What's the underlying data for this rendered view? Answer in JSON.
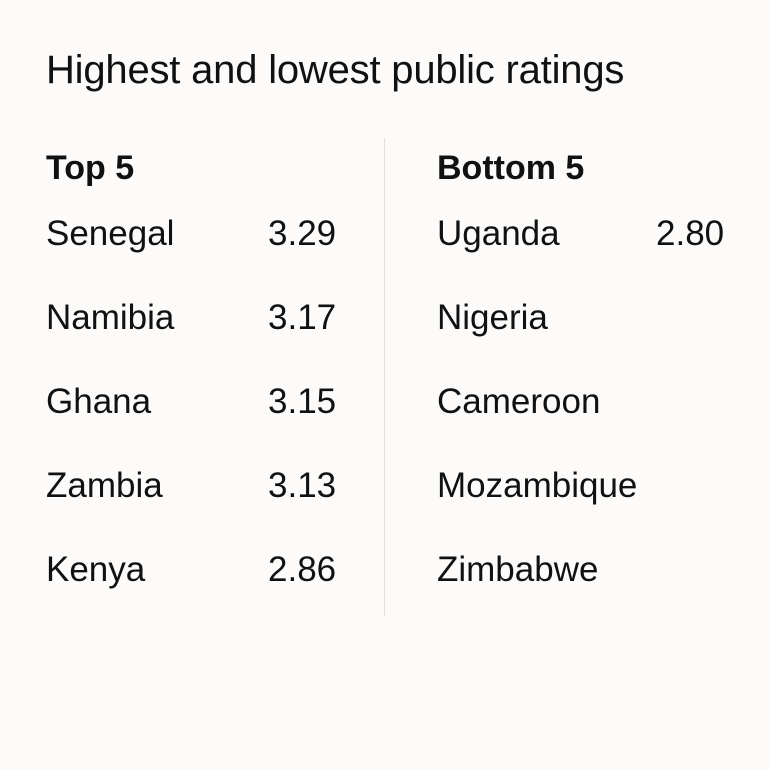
{
  "title": "Highest and lowest public ratings",
  "top": {
    "header": "Top 5",
    "rows": [
      {
        "country": "Senegal",
        "rating": "3.29"
      },
      {
        "country": "Namibia",
        "rating": "3.17"
      },
      {
        "country": "Ghana",
        "rating": "3.15"
      },
      {
        "country": "Zambia",
        "rating": "3.13"
      },
      {
        "country": "Kenya",
        "rating": "2.86"
      }
    ]
  },
  "bottom": {
    "header": "Bottom 5",
    "rows": [
      {
        "country": "Uganda",
        "rating": "2.80"
      },
      {
        "country": "Nigeria"
      },
      {
        "country": "Cameroon"
      },
      {
        "country": "Mozambique"
      },
      {
        "country": "Zimbabwe"
      }
    ]
  }
}
